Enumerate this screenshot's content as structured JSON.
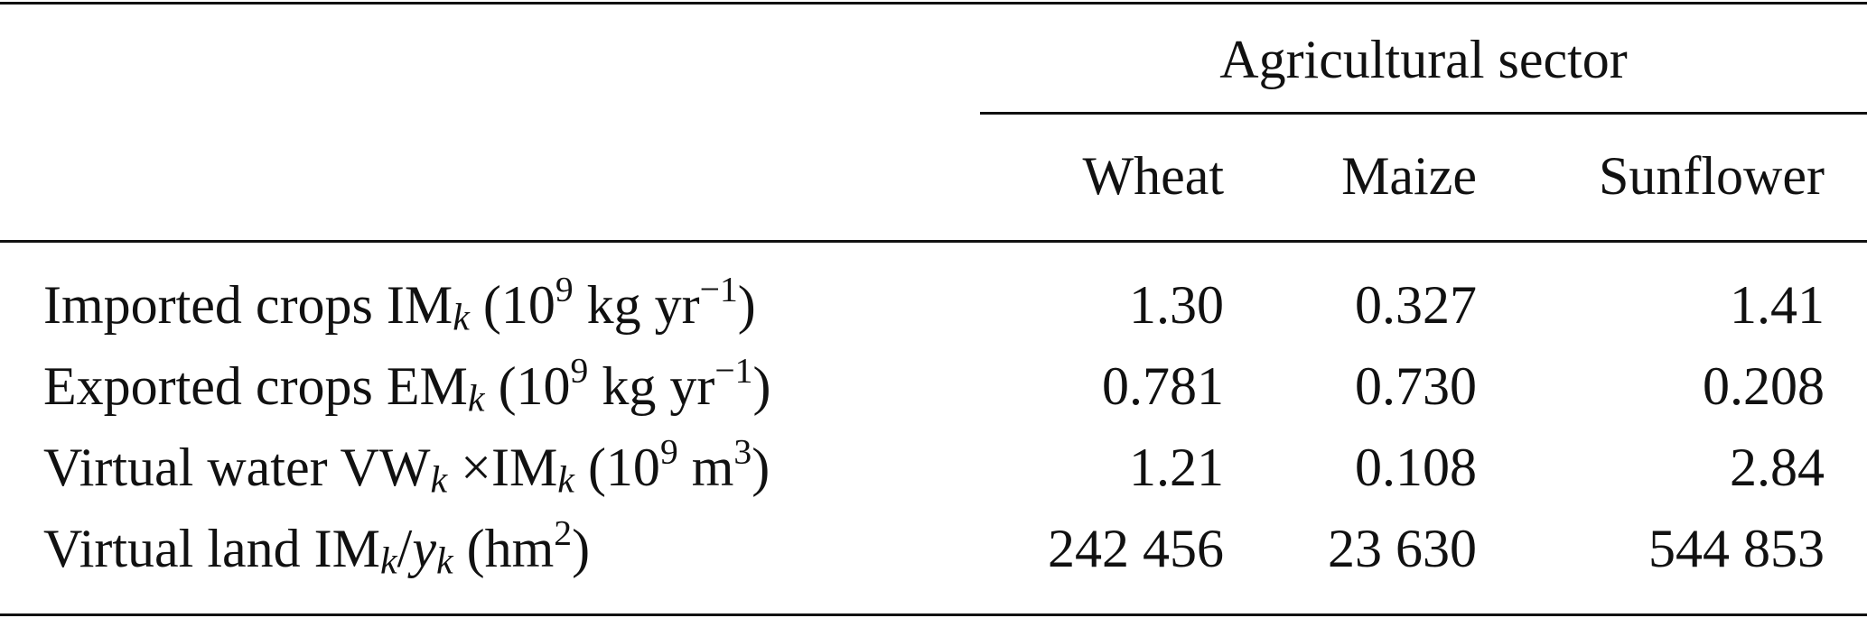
{
  "table": {
    "group_header": "Agricultural sector",
    "columns": [
      "Wheat",
      "Maize",
      "Sunflower"
    ],
    "rows": [
      {
        "label_parts": [
          "Imported crops IM",
          "k",
          " (10",
          "9",
          " kg yr",
          "−1",
          ")"
        ],
        "values": [
          "1.30",
          "0.327",
          "1.41"
        ]
      },
      {
        "label_parts": [
          "Exported crops EM",
          "k",
          " (10",
          "9",
          " kg yr",
          "−1",
          ")"
        ],
        "values": [
          "0.781",
          "0.730",
          "0.208"
        ]
      },
      {
        "label_parts": [
          "Virtual water VW",
          "k",
          " ×IM",
          "k",
          " (10",
          "9",
          " m",
          "3",
          ")"
        ],
        "values": [
          "1.21",
          "0.108",
          "2.84"
        ]
      },
      {
        "label_parts": [
          "Virtual land IM",
          "k",
          "/",
          "y",
          "k",
          " (hm",
          "2",
          ")"
        ],
        "values": [
          "242 456",
          "23 630",
          "544 853"
        ]
      }
    ]
  }
}
